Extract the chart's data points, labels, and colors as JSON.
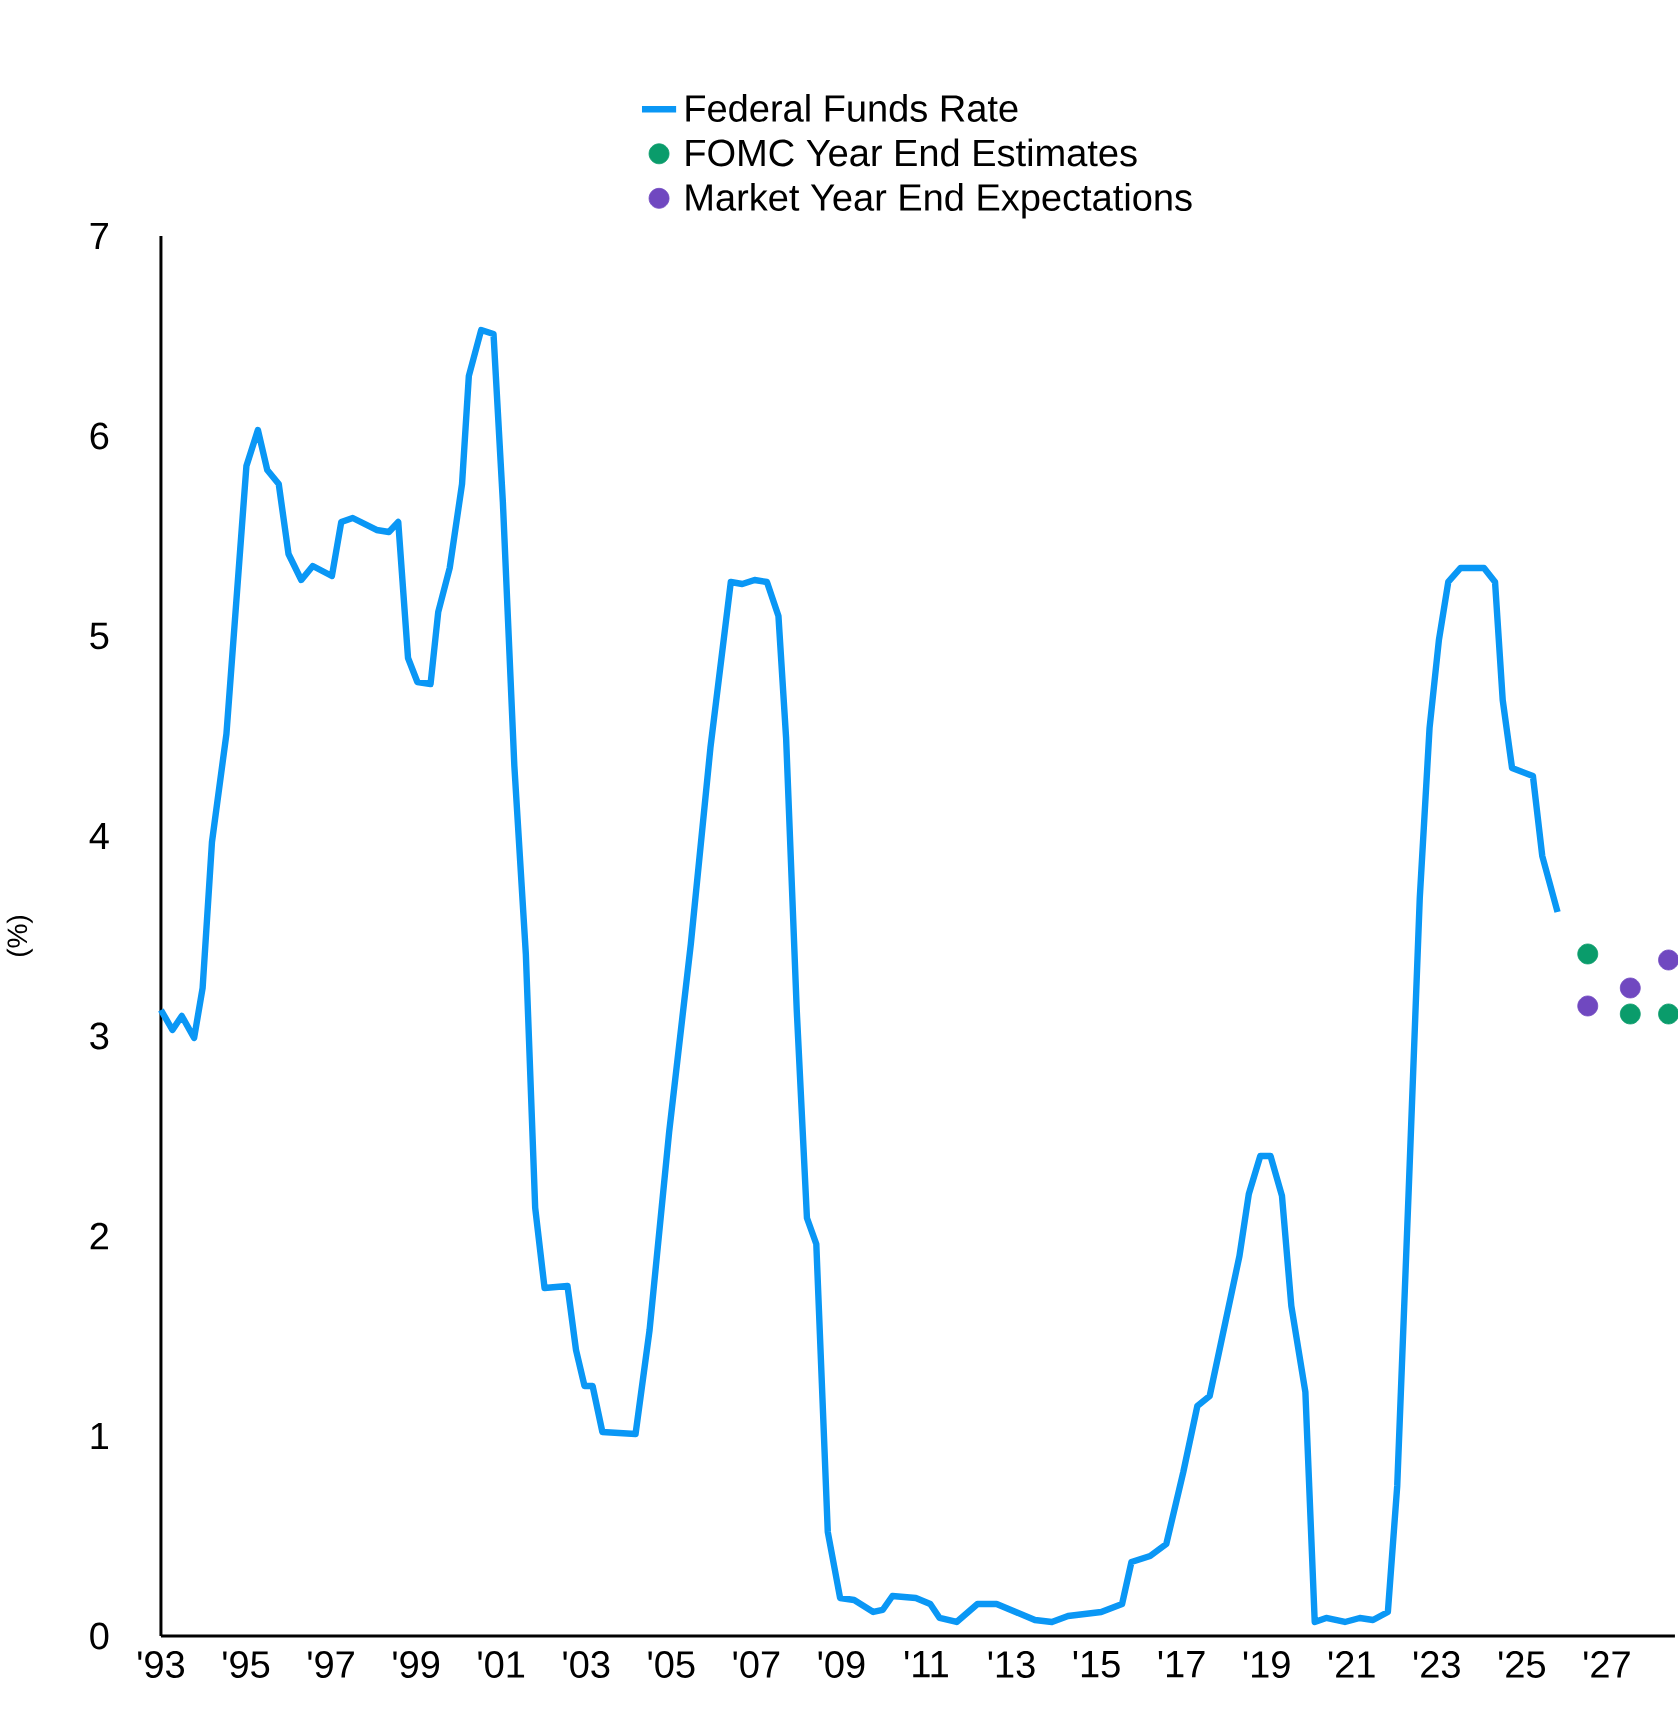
{
  "chart_data": {
    "type": "line",
    "ylabel": "(%)",
    "legend": "top",
    "xlim": [
      1993,
      2028.6
    ],
    "ylim": [
      0,
      7
    ],
    "yticks": [
      0,
      1,
      2,
      3,
      4,
      5,
      6,
      7
    ],
    "xticks": [
      {
        "value": 1993,
        "label": "'93"
      },
      {
        "value": 1995,
        "label": "'95"
      },
      {
        "value": 1997,
        "label": "'97"
      },
      {
        "value": 1999,
        "label": "'99"
      },
      {
        "value": 2001,
        "label": "'01"
      },
      {
        "value": 2003,
        "label": "'03"
      },
      {
        "value": 2005,
        "label": "'05"
      },
      {
        "value": 2007,
        "label": "'07"
      },
      {
        "value": 2009,
        "label": "'09"
      },
      {
        "value": 2011,
        "label": "'11"
      },
      {
        "value": 2013,
        "label": "'13"
      },
      {
        "value": 2015,
        "label": "'15"
      },
      {
        "value": 2017,
        "label": "'17"
      },
      {
        "value": 2019,
        "label": "'19"
      },
      {
        "value": 2021,
        "label": "'21"
      },
      {
        "value": 2023,
        "label": "'23"
      },
      {
        "value": 2025,
        "label": "'25"
      },
      {
        "value": 2027,
        "label": "'27"
      }
    ],
    "series": [
      {
        "name": "Federal Funds Rate",
        "color": "#0a97f5",
        "x": [
          1993.0,
          1993.27,
          1993.49,
          1993.78,
          1993.98,
          1994.2,
          1994.54,
          1995.01,
          1995.28,
          1995.5,
          1995.77,
          1996.0,
          1996.3,
          1996.57,
          1997.02,
          1997.24,
          1997.51,
          1998.07,
          1998.36,
          1998.58,
          1998.81,
          1999.03,
          1999.34,
          1999.52,
          1999.79,
          2000.08,
          2000.24,
          2000.53,
          2000.82,
          2001.04,
          2001.31,
          2001.58,
          2001.8,
          2002.02,
          2002.56,
          2002.76,
          2002.96,
          2003.15,
          2003.38,
          2004.16,
          2004.49,
          2004.95,
          2005.46,
          2005.92,
          2006.4,
          2006.67,
          2006.96,
          2007.25,
          2007.52,
          2007.7,
          2007.95,
          2008.19,
          2008.41,
          2008.68,
          2008.97,
          2009.3,
          2009.75,
          2009.97,
          2010.2,
          2010.75,
          2011.09,
          2011.31,
          2011.71,
          2012.2,
          2012.65,
          2013.1,
          2013.55,
          2013.95,
          2014.33,
          2015.11,
          2015.6,
          2015.82,
          2016.26,
          2016.64,
          2017.04,
          2017.37,
          2017.66,
          2018.03,
          2018.36,
          2018.58,
          2018.85,
          2019.09,
          2019.36,
          2019.58,
          2019.91,
          2020.13,
          2020.4,
          2020.84,
          2021.19,
          2021.5,
          2021.85,
          2022.07,
          2022.34,
          2022.6,
          2022.83,
          2023.05,
          2023.27,
          2023.56,
          2024.11,
          2024.37,
          2024.55,
          2024.77,
          2025.26,
          2025.48,
          2025.84
        ],
        "values": [
          3.13,
          3.03,
          3.1,
          2.99,
          3.24,
          3.97,
          4.51,
          5.85,
          6.03,
          5.83,
          5.76,
          5.41,
          5.28,
          5.35,
          5.3,
          5.57,
          5.59,
          5.53,
          5.52,
          5.57,
          4.89,
          4.77,
          4.76,
          5.12,
          5.34,
          5.76,
          6.3,
          6.53,
          6.51,
          5.67,
          4.35,
          3.41,
          2.14,
          1.74,
          1.75,
          1.43,
          1.25,
          1.25,
          1.02,
          1.01,
          1.53,
          2.52,
          3.46,
          4.44,
          5.27,
          5.26,
          5.28,
          5.27,
          5.1,
          4.49,
          3.13,
          2.09,
          1.96,
          0.52,
          0.19,
          0.18,
          0.12,
          0.13,
          0.2,
          0.19,
          0.16,
          0.09,
          0.07,
          0.16,
          0.16,
          0.12,
          0.08,
          0.07,
          0.1,
          0.12,
          0.16,
          0.37,
          0.4,
          0.46,
          0.82,
          1.15,
          1.2,
          1.57,
          1.9,
          2.21,
          2.4,
          2.4,
          2.2,
          1.65,
          1.22,
          0.07,
          0.09,
          0.07,
          0.09,
          0.08,
          0.12,
          0.75,
          2.23,
          3.69,
          4.54,
          4.98,
          5.27,
          5.34,
          5.34,
          5.27,
          4.68,
          4.34,
          4.3,
          3.9,
          3.62
        ]
      },
      {
        "name": "FOMC Year End Estimates",
        "type": "scatter",
        "color": "#0a9c6b",
        "x": [
          2026.55,
          2027.55,
          2028.45
        ],
        "values": [
          3.41,
          3.11,
          3.11
        ]
      },
      {
        "name": "Market Year End Expectations",
        "type": "scatter",
        "color": "#7048c0",
        "x": [
          2026.55,
          2027.55,
          2028.45
        ],
        "values": [
          3.15,
          3.24,
          3.38
        ]
      }
    ]
  }
}
